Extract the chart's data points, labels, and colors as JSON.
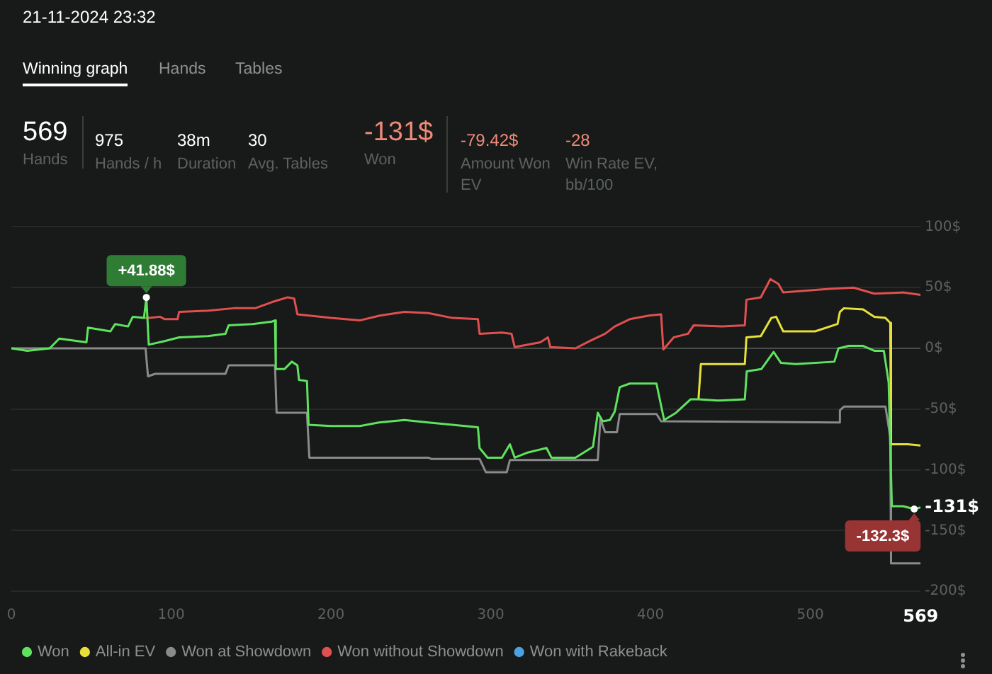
{
  "chart_data": {
    "type": "line",
    "annotations": [
      "21-11-2024 23:32",
      "Winning graph",
      "Hands",
      "Tables",
      "569",
      "Hands",
      "975",
      "Hands / h",
      "38m",
      "Duration",
      "30",
      "Avg. Tables",
      "-131$",
      "Won",
      "-79.42$",
      "Amount Won EV",
      "-28",
      "Win Rate EV, bb/100",
      {
        "text": "+41.88$",
        "x": 84.5,
        "y": 41.88
      },
      {
        "text": "-132.3$",
        "x": 565,
        "y": -132.3
      }
    ],
    "xlim": [
      0,
      569
    ],
    "xticks": [
      0,
      100,
      200,
      300,
      400,
      500,
      569
    ],
    "ylim": [
      -200,
      100
    ],
    "yticks": [
      {
        "value": 100,
        "label": "100$"
      },
      {
        "value": 50,
        "label": "50$"
      },
      {
        "value": 0,
        "label": "0$"
      },
      {
        "value": -50,
        "label": "-50$"
      },
      {
        "value": -100,
        "label": "-100$"
      },
      {
        "value": -150,
        "label": "-150$"
      },
      {
        "value": -200,
        "label": "-200$"
      },
      {
        "value": -131,
        "label": "-131$"
      }
    ],
    "grid": "y",
    "legend": "bottom left",
    "marker": "none",
    "line_style": "solid",
    "series": [
      {
        "name": "Won",
        "color": "#5fe35f",
        "x": [
          0,
          10,
          24,
          30,
          47,
          48,
          62,
          65,
          73,
          76,
          83,
          84.5,
          86,
          96,
          105,
          123,
          134,
          136,
          151,
          163,
          165,
          165.5,
          171,
          175.5,
          179,
          180,
          185,
          186,
          200,
          218,
          230,
          246,
          261,
          292,
          293,
          298,
          307,
          312,
          315,
          322.6,
          334.9,
          338,
          353,
          364,
          367,
          370,
          374.6,
          377.6,
          380.7,
          387,
          399,
          403.7,
          408.5,
          416,
          425,
          430,
          442,
          459,
          460.2,
          469.4,
          477,
          481.6,
          490.8,
          515,
          517.6,
          521,
          524,
          533,
          540,
          546,
          549,
          551,
          558,
          565,
          569
        ],
        "values": [
          0,
          -2,
          0,
          8,
          5,
          17,
          14,
          20,
          18,
          26,
          25,
          41.88,
          3,
          6,
          9,
          10,
          12,
          19,
          20,
          22,
          23,
          -17,
          -17,
          -11,
          -14,
          -26,
          -27,
          -63,
          -64,
          -64,
          -61,
          -59,
          -61,
          -65,
          -82,
          -90,
          -90,
          -79,
          -90,
          -86,
          -82,
          -90,
          -90,
          -81,
          -53,
          -60,
          -59,
          -52,
          -32,
          -29,
          -29,
          -29,
          -59,
          -53,
          -42,
          -42,
          -43,
          -42,
          -19,
          -17,
          -3,
          -12,
          -13,
          -11,
          0,
          1,
          2,
          2,
          -2,
          -2,
          -28,
          -130,
          -130,
          -132.3,
          -131
        ]
      },
      {
        "name": "All-in EV",
        "color": "#e8e03a",
        "x": [
          430,
          431.5,
          459,
          460,
          469,
          475.6,
          478.6,
          483,
          503,
          517,
          518.5,
          521,
          533,
          540,
          547,
          550,
          550.5,
          561,
          569
        ],
        "values": [
          -42,
          -13,
          -13,
          9,
          10,
          25,
          26,
          14,
          14,
          20,
          30,
          33,
          32,
          26,
          25,
          21,
          -79,
          -79,
          -80
        ]
      },
      {
        "name": "Won at Showdown",
        "color": "#8a8a8a",
        "x": [
          0,
          84,
          85.5,
          90,
          134,
          136,
          165,
          166,
          185,
          186.5,
          261,
          262.7,
          293,
          297,
          310,
          312,
          367,
          368.6,
          371.6,
          379,
          380.7,
          403.7,
          406.6,
          518,
          518.5,
          521,
          547,
          550,
          550.5,
          569
        ],
        "values": [
          0,
          0,
          -23,
          -21,
          -21,
          -14,
          -14,
          -53,
          -53,
          -90,
          -90,
          -91,
          -91,
          -102,
          -102,
          -92,
          -92,
          -58,
          -69,
          -69,
          -54,
          -54,
          -60,
          -61,
          -51,
          -48,
          -48,
          -73,
          -177,
          -177
        ]
      },
      {
        "name": "Won without Showdown",
        "color": "#e05050",
        "x": [
          83,
          86.6,
          93,
          96,
          104,
          105,
          123.5,
          139,
          152.6,
          163,
          173,
          177,
          179,
          200,
          218,
          230.6,
          246,
          261,
          276,
          292,
          293,
          307,
          313,
          315,
          331,
          335.8,
          337.3,
          353,
          362,
          371.6,
          377.6,
          387,
          399,
          406.6,
          408,
          414.5,
          423.5,
          427,
          445,
          459,
          460,
          469,
          475,
          480,
          483,
          512,
          527,
          540,
          558,
          569
        ],
        "values": [
          25,
          25,
          26,
          24,
          24,
          30,
          31,
          33,
          33,
          38,
          42,
          41,
          28,
          25,
          23,
          27,
          30,
          29,
          25,
          24,
          12,
          13,
          12,
          1,
          5,
          9,
          1,
          0,
          6,
          12,
          18,
          24,
          27,
          28,
          -1,
          9,
          12,
          19,
          18,
          19,
          40,
          42,
          57,
          53,
          46,
          49,
          50,
          45,
          46,
          44
        ]
      },
      {
        "name": "Won with Rakeback",
        "color": "#4aa3e0"
      }
    ]
  }
}
